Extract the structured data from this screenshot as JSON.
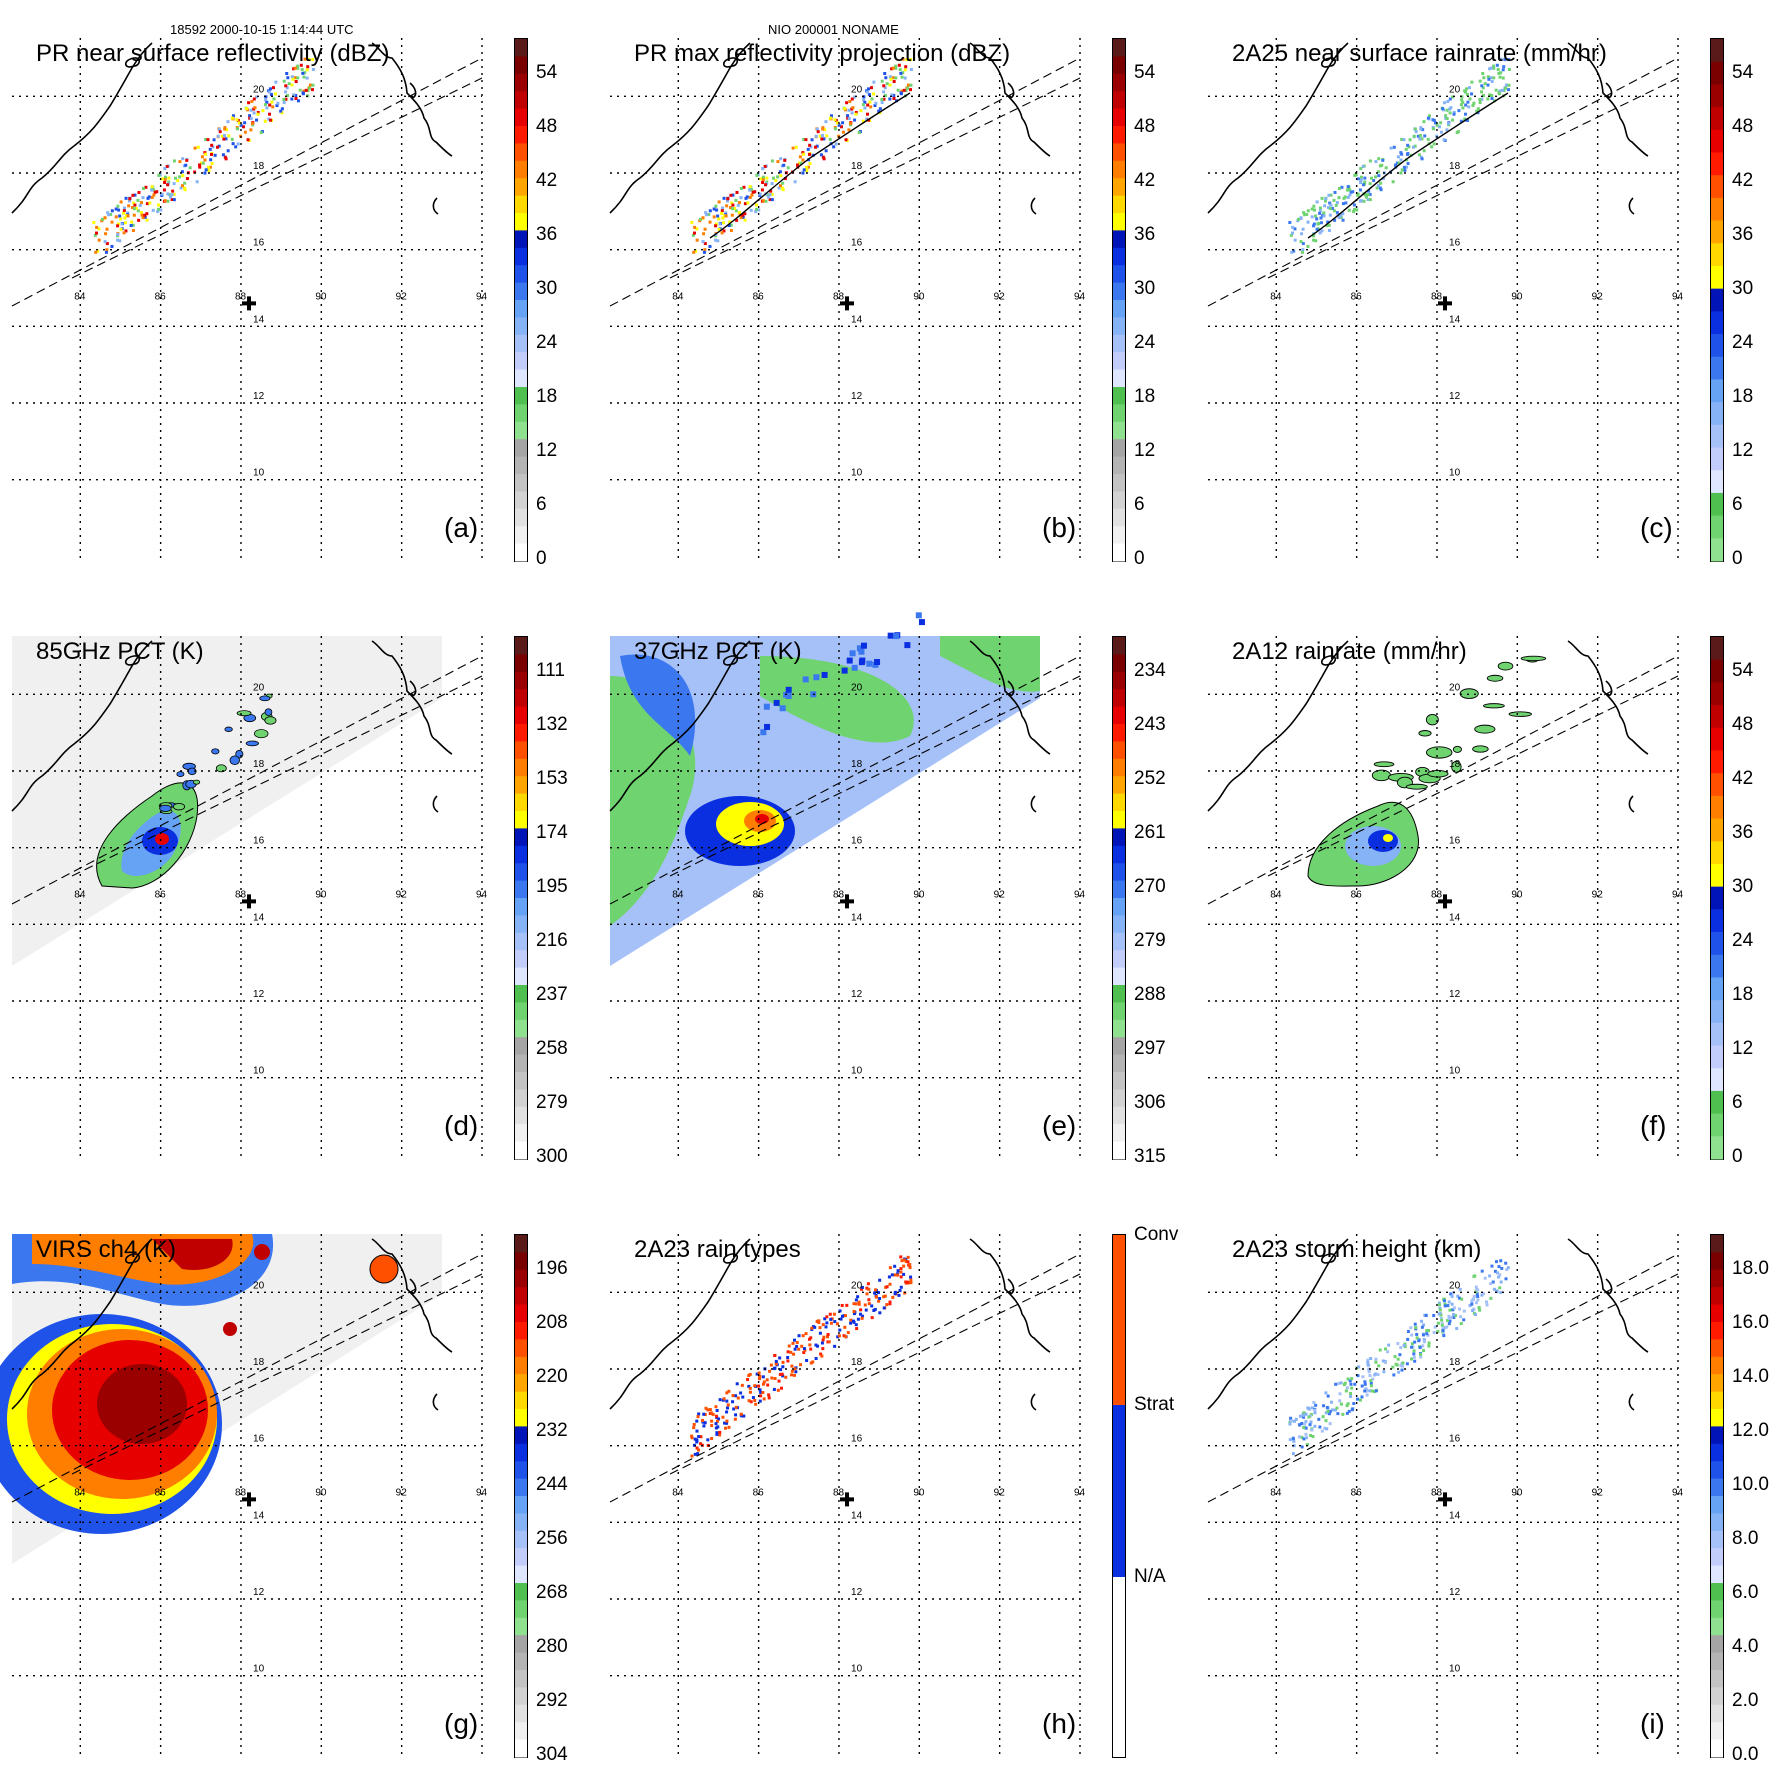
{
  "header": {
    "left": "18592 2000-10-15 1:14:44 UTC",
    "center": "NIO 200001 NONAME"
  },
  "colors": {
    "gray": [
      "#ffffff",
      "#f0f0f0",
      "#e1e1e1",
      "#d2d2d2",
      "#c3c3c3",
      "#b4b4b4",
      "#a5a5a5"
    ],
    "green": [
      "#8fe08f",
      "#6fd36f",
      "#4fc04f"
    ],
    "blue": [
      "#dfe6ff",
      "#c3cdfb",
      "#a6c1f7",
      "#86b2f6",
      "#66a3f4",
      "#3b78f0",
      "#1f52e8",
      "#0a2fe0",
      "#0014b8"
    ],
    "yellow": [
      "#ffff00",
      "#ffd800"
    ],
    "orange": [
      "#ffa500",
      "#ff7e00",
      "#ff5000"
    ],
    "red": [
      "#ff1a00",
      "#e60000",
      "#c00000",
      "#9a0000",
      "#7a0000",
      "#5a1a1a"
    ]
  },
  "lon_labels": [
    "84",
    "86",
    "88",
    "90",
    "92",
    "94"
  ],
  "lat_labels": [
    "20",
    "18",
    "16",
    "14",
    "12",
    "10"
  ],
  "panels": [
    {
      "title": "PR near surface reflectivity (dBZ)",
      "label": "(a)",
      "cbar": "std",
      "ticks": [
        "54",
        "48",
        "42",
        "36",
        "30",
        "24",
        "18",
        "12",
        "6",
        "0"
      ],
      "kind": "pr_a"
    },
    {
      "title": "PR max reflectivity projection (dBZ)",
      "label": "(b)",
      "cbar": "std",
      "ticks": [
        "54",
        "48",
        "42",
        "36",
        "30",
        "24",
        "18",
        "12",
        "6",
        "0"
      ],
      "kind": "pr_b"
    },
    {
      "title": "2A25 near surface rainrate (mm/hr)",
      "label": "(c)",
      "cbar": "rain",
      "ticks": [
        "54",
        "48",
        "42",
        "36",
        "30",
        "24",
        "18",
        "12",
        "6",
        "0"
      ],
      "kind": "pr_c"
    },
    {
      "title": "85GHz PCT (K)",
      "label": "(d)",
      "cbar": "std",
      "ticks": [
        "111",
        "132",
        "153",
        "174",
        "195",
        "216",
        "237",
        "258",
        "279",
        "300"
      ],
      "kind": "pct85"
    },
    {
      "title": "37GHz PCT (K)",
      "label": "(e)",
      "cbar": "std",
      "ticks": [
        "234",
        "243",
        "252",
        "261",
        "270",
        "279",
        "288",
        "297",
        "306",
        "315"
      ],
      "kind": "pct37"
    },
    {
      "title": "2A12 rainrate (mm/hr)",
      "label": "(f)",
      "cbar": "rain",
      "ticks": [
        "54",
        "48",
        "42",
        "36",
        "30",
        "24",
        "18",
        "12",
        "6",
        "0"
      ],
      "kind": "rr12"
    },
    {
      "title": "VIRS ch4 (K)",
      "label": "(g)",
      "cbar": "std",
      "ticks": [
        "196",
        "208",
        "220",
        "232",
        "244",
        "256",
        "268",
        "280",
        "292",
        "304"
      ],
      "kind": "virs"
    },
    {
      "title": "2A23 rain types",
      "label": "(h)",
      "cbar": "types",
      "ticks": [
        "Conv",
        "Strat",
        "N/A"
      ],
      "kind": "types"
    },
    {
      "title": "2A23 storm height (km)",
      "label": "(i)",
      "cbar": "std",
      "ticks": [
        "18.0",
        "16.0",
        "14.0",
        "12.0",
        "10.0",
        "8.0",
        "6.0",
        "4.0",
        "2.0",
        "0.0"
      ],
      "kind": "height"
    }
  ]
}
